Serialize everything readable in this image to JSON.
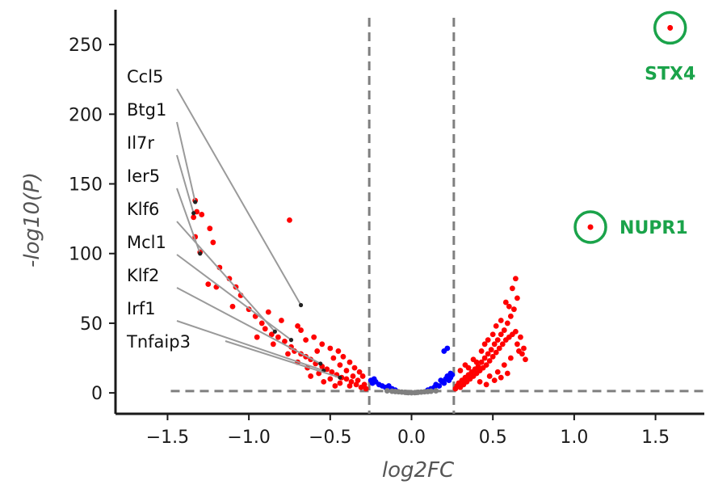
{
  "chart_data": {
    "type": "scatter",
    "title": "",
    "xlabel": "log2FC",
    "ylabel": "-log10(P)",
    "xlim": [
      -1.82,
      1.8
    ],
    "ylim": [
      -15,
      275
    ],
    "xticks": [
      -1.5,
      -1.0,
      -0.5,
      0.0,
      0.5,
      1.0,
      1.5
    ],
    "xtick_labels": [
      "−1.5",
      "−1.0",
      "−0.5",
      "0.0",
      "0.5",
      "1.0",
      "1.5"
    ],
    "yticks": [
      0,
      50,
      100,
      150,
      200,
      250
    ],
    "ytick_labels": [
      "0",
      "50",
      "100",
      "150",
      "200",
      "250"
    ],
    "thresholds": {
      "x": [
        -0.26,
        0.26
      ],
      "y": 1.3
    },
    "colors": {
      "significant": "#ff0000",
      "fc_only": "#0000ff",
      "ns": "#808080",
      "highlight": "#1aa34a",
      "threshold": "#7f7f7f"
    },
    "grid": false,
    "legend": "none",
    "series": [
      {
        "color": "#ff0000",
        "points": [
          [
            -1.33,
            138
          ],
          [
            -1.32,
            130
          ],
          [
            -1.34,
            126
          ],
          [
            -1.29,
            128
          ],
          [
            -1.33,
            112
          ],
          [
            -1.3,
            101
          ],
          [
            -1.24,
            118
          ],
          [
            -1.22,
            108
          ],
          [
            -1.18,
            90
          ],
          [
            -1.12,
            82
          ],
          [
            -1.25,
            78
          ],
          [
            -1.2,
            76
          ],
          [
            -1.08,
            76
          ],
          [
            -1.05,
            70
          ],
          [
            -1.1,
            62
          ],
          [
            -1.0,
            60
          ],
          [
            -0.96,
            55
          ],
          [
            -0.92,
            50
          ],
          [
            -0.9,
            46
          ],
          [
            -0.86,
            42
          ],
          [
            -0.82,
            40
          ],
          [
            -0.78,
            37
          ],
          [
            -0.74,
            33
          ],
          [
            -0.72,
            30
          ],
          [
            -0.68,
            28
          ],
          [
            -0.65,
            26
          ],
          [
            -0.62,
            24
          ],
          [
            -0.59,
            21
          ],
          [
            -0.55,
            19
          ],
          [
            -0.52,
            17
          ],
          [
            -0.49,
            15
          ],
          [
            -0.46,
            13
          ],
          [
            -0.43,
            11
          ],
          [
            -0.4,
            10
          ],
          [
            -0.37,
            8
          ],
          [
            -0.34,
            6
          ],
          [
            -0.31,
            4
          ],
          [
            -0.28,
            3
          ],
          [
            -0.75,
            124
          ],
          [
            -0.68,
            45
          ],
          [
            -0.6,
            40
          ],
          [
            -0.55,
            35
          ],
          [
            -0.5,
            32
          ],
          [
            -0.45,
            30
          ],
          [
            -0.42,
            26
          ],
          [
            -0.38,
            22
          ],
          [
            -0.35,
            18
          ],
          [
            -0.32,
            15
          ],
          [
            -0.3,
            12
          ],
          [
            -0.88,
            58
          ],
          [
            -0.8,
            52
          ],
          [
            -0.7,
            48
          ],
          [
            -0.65,
            38
          ],
          [
            -0.58,
            30
          ],
          [
            -0.48,
            25
          ],
          [
            -0.44,
            20
          ],
          [
            -0.4,
            16
          ],
          [
            -0.36,
            12
          ],
          [
            -0.33,
            9
          ],
          [
            -0.29,
            6
          ],
          [
            -0.95,
            40
          ],
          [
            -0.85,
            35
          ],
          [
            -0.76,
            28
          ],
          [
            -0.7,
            22
          ],
          [
            -0.64,
            18
          ],
          [
            -0.57,
            14
          ],
          [
            -0.5,
            10
          ],
          [
            -0.44,
            7
          ],
          [
            -0.38,
            5
          ],
          [
            -0.62,
            12
          ],
          [
            -0.54,
            8
          ],
          [
            -0.47,
            5
          ],
          [
            0.27,
            3
          ],
          [
            0.28,
            5
          ],
          [
            0.29,
            7
          ],
          [
            0.3,
            4
          ],
          [
            0.31,
            9
          ],
          [
            0.32,
            6
          ],
          [
            0.33,
            11
          ],
          [
            0.34,
            8
          ],
          [
            0.35,
            13
          ],
          [
            0.36,
            10
          ],
          [
            0.37,
            15
          ],
          [
            0.38,
            12
          ],
          [
            0.39,
            17
          ],
          [
            0.4,
            14
          ],
          [
            0.41,
            19
          ],
          [
            0.42,
            16
          ],
          [
            0.43,
            22
          ],
          [
            0.44,
            18
          ],
          [
            0.45,
            25
          ],
          [
            0.46,
            20
          ],
          [
            0.47,
            28
          ],
          [
            0.48,
            23
          ],
          [
            0.49,
            31
          ],
          [
            0.5,
            26
          ],
          [
            0.51,
            35
          ],
          [
            0.52,
            29
          ],
          [
            0.53,
            38
          ],
          [
            0.54,
            32
          ],
          [
            0.55,
            42
          ],
          [
            0.56,
            35
          ],
          [
            0.57,
            45
          ],
          [
            0.58,
            38
          ],
          [
            0.59,
            50
          ],
          [
            0.6,
            40
          ],
          [
            0.61,
            55
          ],
          [
            0.62,
            42
          ],
          [
            0.63,
            60
          ],
          [
            0.64,
            44
          ],
          [
            0.65,
            68
          ],
          [
            0.66,
            30
          ],
          [
            0.68,
            28
          ],
          [
            0.7,
            24
          ],
          [
            0.33,
            20
          ],
          [
            0.3,
            16
          ],
          [
            0.4,
            22
          ],
          [
            0.45,
            35
          ],
          [
            0.5,
            42
          ],
          [
            0.55,
            52
          ],
          [
            0.6,
            62
          ],
          [
            0.64,
            82
          ],
          [
            0.62,
            75
          ],
          [
            0.58,
            65
          ],
          [
            0.52,
            48
          ],
          [
            0.47,
            38
          ],
          [
            0.43,
            30
          ],
          [
            0.38,
            24
          ],
          [
            0.35,
            18
          ],
          [
            0.42,
            8
          ],
          [
            0.48,
            12
          ],
          [
            0.53,
            15
          ],
          [
            0.57,
            20
          ],
          [
            0.61,
            25
          ],
          [
            0.65,
            35
          ],
          [
            0.67,
            40
          ],
          [
            0.69,
            32
          ],
          [
            0.46,
            6
          ],
          [
            0.51,
            9
          ],
          [
            0.55,
            11
          ],
          [
            0.59,
            14
          ],
          [
            1.59,
            262
          ],
          [
            1.1,
            119
          ]
        ]
      },
      {
        "color": "#0000ff",
        "points": [
          [
            -0.25,
            9
          ],
          [
            -0.24,
            7
          ],
          [
            -0.22,
            8
          ],
          [
            -0.2,
            6
          ],
          [
            -0.18,
            5
          ],
          [
            -0.16,
            4
          ],
          [
            -0.14,
            5
          ],
          [
            -0.12,
            3
          ],
          [
            -0.1,
            2
          ],
          [
            0.1,
            2
          ],
          [
            0.12,
            3
          ],
          [
            0.14,
            4
          ],
          [
            0.15,
            6
          ],
          [
            0.17,
            5
          ],
          [
            0.19,
            8
          ],
          [
            0.2,
            7
          ],
          [
            0.21,
            10
          ],
          [
            0.22,
            12
          ],
          [
            0.23,
            9
          ],
          [
            0.24,
            11
          ],
          [
            0.25,
            13
          ],
          [
            0.2,
            30
          ],
          [
            0.22,
            32
          ],
          [
            0.24,
            14
          ],
          [
            -0.23,
            10
          ],
          [
            0.18,
            9
          ]
        ]
      },
      {
        "color": "#808080",
        "points": [
          [
            -0.1,
            1
          ],
          [
            -0.08,
            0.8
          ],
          [
            -0.06,
            0.6
          ],
          [
            -0.04,
            0.4
          ],
          [
            -0.02,
            0.2
          ],
          [
            0.0,
            0.1
          ],
          [
            0.02,
            0.2
          ],
          [
            0.04,
            0.4
          ],
          [
            0.06,
            0.6
          ],
          [
            0.08,
            0.8
          ],
          [
            0.1,
            1
          ],
          [
            -0.12,
            1.2
          ],
          [
            0.12,
            1.2
          ],
          [
            -0.15,
            1.5
          ],
          [
            0.15,
            1.5
          ],
          [
            0.03,
            0.3
          ],
          [
            -0.03,
            0.3
          ]
        ]
      }
    ],
    "labeled_genes": [
      {
        "name": "Ccl5",
        "x": -0.68,
        "y": 63
      },
      {
        "name": "Btg1",
        "x": -1.33,
        "y": 137
      },
      {
        "name": "Il7r",
        "x": -1.34,
        "y": 129
      },
      {
        "name": "Ier5",
        "x": -1.3,
        "y": 100
      },
      {
        "name": "Klf6",
        "x": -0.84,
        "y": 44
      },
      {
        "name": "Mcl1",
        "x": -0.74,
        "y": 38
      },
      {
        "name": "Klf2",
        "x": -0.56,
        "y": 21
      },
      {
        "name": "Irf1",
        "x": -0.54,
        "y": 16
      },
      {
        "name": "Tnfaip3",
        "x": -0.44,
        "y": 11
      }
    ],
    "highlighted_genes": [
      {
        "name": "STX4",
        "x": 1.59,
        "y": 262
      },
      {
        "name": "NUPR1",
        "x": 1.1,
        "y": 119
      }
    ]
  }
}
